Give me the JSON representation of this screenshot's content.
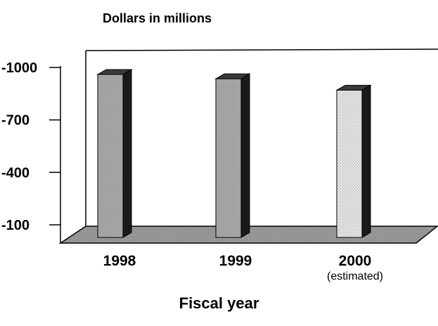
{
  "chart_data": {
    "type": "bar",
    "title": "Dollars in millions",
    "xlabel": "Fiscal year",
    "ylabel": "",
    "categories": [
      "1998",
      "1999",
      "2000"
    ],
    "category_notes": [
      "",
      "",
      "(estimated)"
    ],
    "values": [
      -960,
      -935,
      -870
    ],
    "ylim": [
      -100,
      -1000
    ],
    "yticks": [
      "-1000",
      "-700",
      "-400",
      "-100"
    ],
    "colors": {
      "historical": "#a8a8a8",
      "estimated": "#e2e2e2",
      "side": "#1a1a1a",
      "floor": "#9a9a9a"
    }
  }
}
